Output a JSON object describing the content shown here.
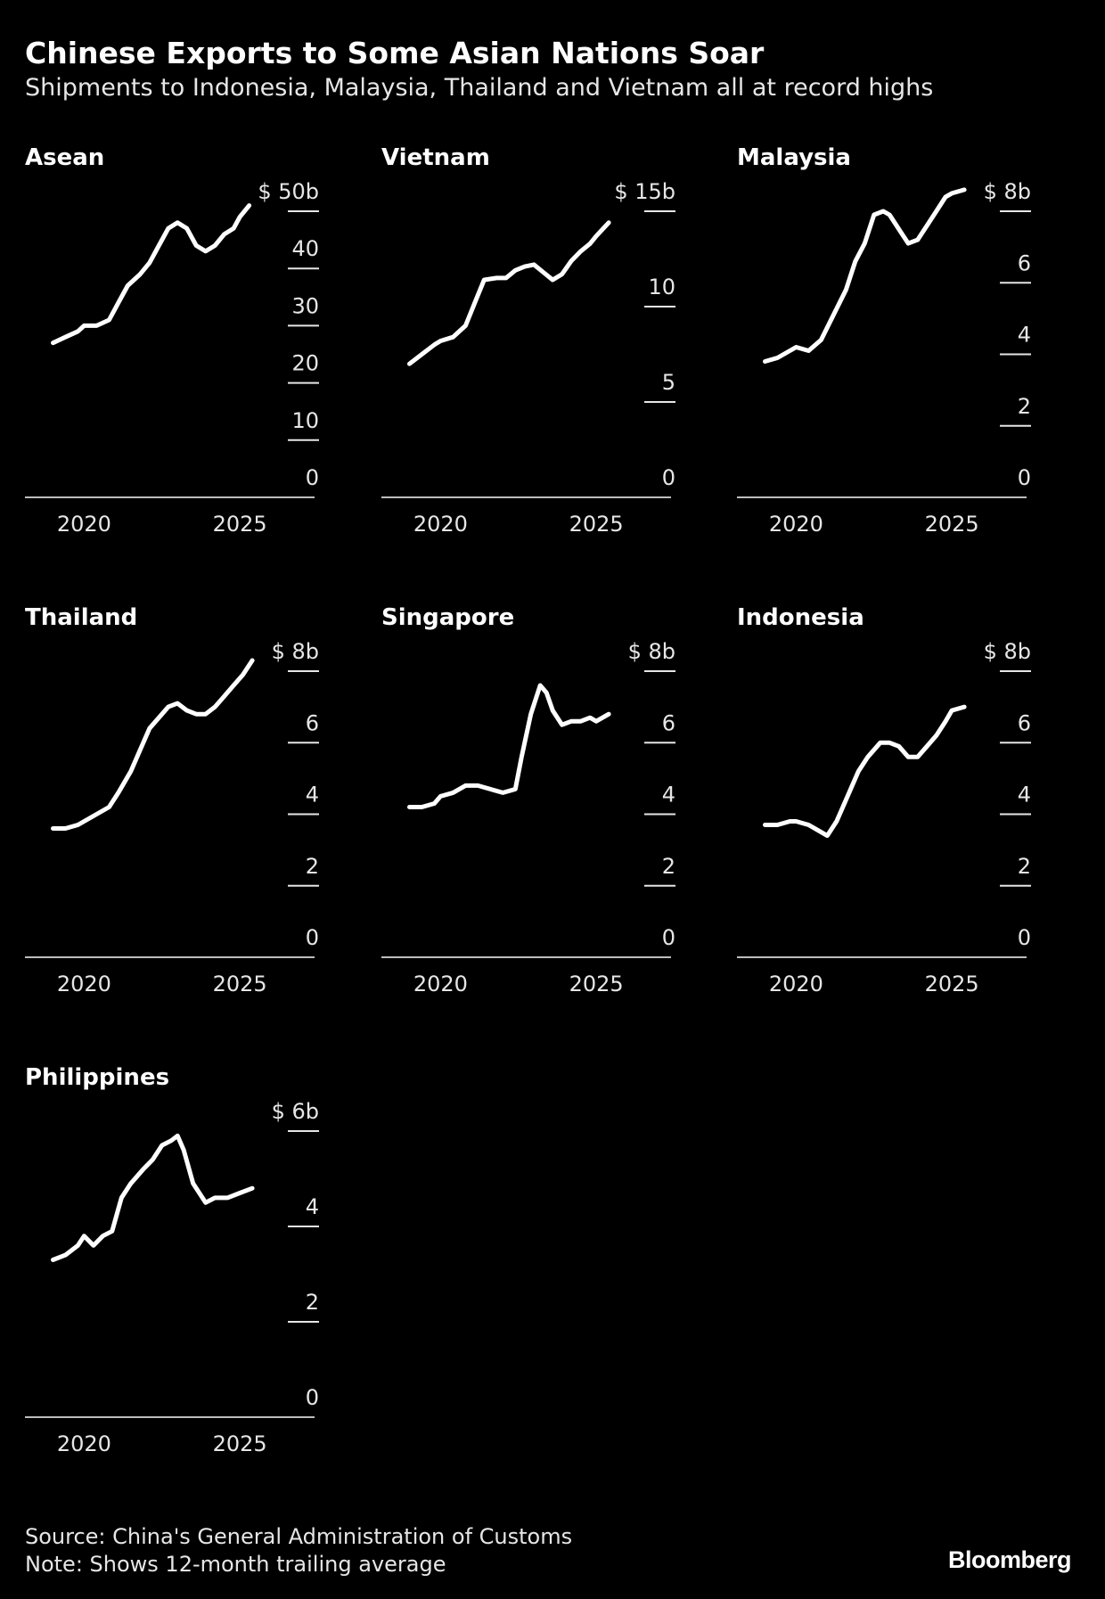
{
  "title": "Chinese Exports to Some Asian Nations Soar",
  "subtitle": "Shipments to Indonesia, Malaysia, Thailand and Vietnam all at record highs",
  "source": "Source: China's General Administration of Customs",
  "note": "Note: Shows 12-month trailing average",
  "brand": "Bloomberg",
  "colors": {
    "background": "#000000",
    "line": "#ffffff",
    "text": "#e6e6e6"
  },
  "chart_data": [
    {
      "type": "line",
      "title": "Asean",
      "unit_prefix": "$",
      "unit_suffix": "b",
      "ylim": [
        0,
        50
      ],
      "y_ticks": [
        {
          "value": 0,
          "label": "0"
        },
        {
          "value": 10,
          "label": "10"
        },
        {
          "value": 20,
          "label": "20"
        },
        {
          "value": 30,
          "label": "30"
        },
        {
          "value": 40,
          "label": "40"
        },
        {
          "value": 50,
          "label": "$ 50b"
        }
      ],
      "x_ticks": [
        {
          "value": 2020,
          "label": "2020"
        },
        {
          "value": 2025,
          "label": "2025"
        }
      ],
      "xlim": [
        2018.1,
        2027.4
      ],
      "x": [
        2019.0,
        2019.4,
        2019.8,
        2020.0,
        2020.4,
        2020.8,
        2021.1,
        2021.4,
        2021.8,
        2022.1,
        2022.4,
        2022.7,
        2023.0,
        2023.3,
        2023.6,
        2023.9,
        2024.2,
        2024.5,
        2024.8,
        2025.0,
        2025.3
      ],
      "values": [
        27,
        28,
        29,
        30,
        30,
        31,
        34,
        37,
        39,
        41,
        44,
        47,
        48,
        47,
        44,
        43,
        44,
        46,
        47,
        49,
        51
      ]
    },
    {
      "type": "line",
      "title": "Vietnam",
      "unit_prefix": "$",
      "unit_suffix": "b",
      "ylim": [
        0,
        15
      ],
      "y_ticks": [
        {
          "value": 0,
          "label": "0"
        },
        {
          "value": 5,
          "label": "5"
        },
        {
          "value": 10,
          "label": "10"
        },
        {
          "value": 15,
          "label": "$ 15b"
        }
      ],
      "x_ticks": [
        {
          "value": 2020,
          "label": "2020"
        },
        {
          "value": 2025,
          "label": "2025"
        }
      ],
      "xlim": [
        2018.1,
        2027.4
      ],
      "x": [
        2019.0,
        2019.4,
        2019.8,
        2020.0,
        2020.4,
        2020.8,
        2021.1,
        2021.4,
        2021.8,
        2022.1,
        2022.4,
        2022.7,
        2023.0,
        2023.3,
        2023.6,
        2023.9,
        2024.2,
        2024.5,
        2024.8,
        2025.0,
        2025.4
      ],
      "values": [
        7.0,
        7.5,
        8.0,
        8.2,
        8.4,
        9.0,
        10.2,
        11.4,
        11.5,
        11.5,
        11.9,
        12.1,
        12.2,
        11.8,
        11.4,
        11.7,
        12.4,
        12.9,
        13.3,
        13.7,
        14.4
      ]
    },
    {
      "type": "line",
      "title": "Malaysia",
      "unit_prefix": "$",
      "unit_suffix": "b",
      "ylim": [
        0,
        8
      ],
      "y_ticks": [
        {
          "value": 0,
          "label": "0"
        },
        {
          "value": 2,
          "label": "2"
        },
        {
          "value": 4,
          "label": "4"
        },
        {
          "value": 6,
          "label": "6"
        },
        {
          "value": 8,
          "label": "$ 8b"
        }
      ],
      "x_ticks": [
        {
          "value": 2020,
          "label": "2020"
        },
        {
          "value": 2025,
          "label": "2025"
        }
      ],
      "xlim": [
        2018.1,
        2027.4
      ],
      "x": [
        2019.0,
        2019.4,
        2019.8,
        2020.0,
        2020.4,
        2020.8,
        2021.2,
        2021.6,
        2021.9,
        2022.2,
        2022.5,
        2022.8,
        2023.0,
        2023.3,
        2023.6,
        2023.9,
        2024.2,
        2024.5,
        2024.8,
        2025.0,
        2025.4
      ],
      "values": [
        3.8,
        3.9,
        4.1,
        4.2,
        4.1,
        4.4,
        5.1,
        5.8,
        6.6,
        7.1,
        7.9,
        8.0,
        7.9,
        7.5,
        7.1,
        7.2,
        7.6,
        8.0,
        8.4,
        8.5,
        8.6
      ]
    },
    {
      "type": "line",
      "title": "Thailand",
      "unit_prefix": "$",
      "unit_suffix": "b",
      "ylim": [
        0,
        8
      ],
      "y_ticks": [
        {
          "value": 0,
          "label": "0"
        },
        {
          "value": 2,
          "label": "2"
        },
        {
          "value": 4,
          "label": "4"
        },
        {
          "value": 6,
          "label": "6"
        },
        {
          "value": 8,
          "label": "$ 8b"
        }
      ],
      "x_ticks": [
        {
          "value": 2020,
          "label": "2020"
        },
        {
          "value": 2025,
          "label": "2025"
        }
      ],
      "xlim": [
        2018.1,
        2027.4
      ],
      "x": [
        2019.0,
        2019.4,
        2019.8,
        2020.0,
        2020.4,
        2020.8,
        2021.1,
        2021.5,
        2021.8,
        2022.1,
        2022.4,
        2022.7,
        2023.0,
        2023.3,
        2023.6,
        2023.9,
        2024.2,
        2024.5,
        2024.8,
        2025.1,
        2025.4
      ],
      "values": [
        3.6,
        3.6,
        3.7,
        3.8,
        4.0,
        4.2,
        4.6,
        5.2,
        5.8,
        6.4,
        6.7,
        7.0,
        7.1,
        6.9,
        6.8,
        6.8,
        7.0,
        7.3,
        7.6,
        7.9,
        8.3
      ]
    },
    {
      "type": "line",
      "title": "Singapore",
      "unit_prefix": "$",
      "unit_suffix": "b",
      "ylim": [
        0,
        8
      ],
      "y_ticks": [
        {
          "value": 0,
          "label": "0"
        },
        {
          "value": 2,
          "label": "2"
        },
        {
          "value": 4,
          "label": "4"
        },
        {
          "value": 6,
          "label": "6"
        },
        {
          "value": 8,
          "label": "$ 8b"
        }
      ],
      "x_ticks": [
        {
          "value": 2020,
          "label": "2020"
        },
        {
          "value": 2025,
          "label": "2025"
        }
      ],
      "xlim": [
        2018.1,
        2027.4
      ],
      "x": [
        2019.0,
        2019.4,
        2019.8,
        2020.0,
        2020.4,
        2020.8,
        2021.2,
        2021.6,
        2022.0,
        2022.4,
        2022.6,
        2022.9,
        2023.2,
        2023.4,
        2023.6,
        2023.9,
        2024.2,
        2024.5,
        2024.8,
        2025.0,
        2025.4
      ],
      "values": [
        4.2,
        4.2,
        4.3,
        4.5,
        4.6,
        4.8,
        4.8,
        4.7,
        4.6,
        4.7,
        5.6,
        6.8,
        7.6,
        7.4,
        6.9,
        6.5,
        6.6,
        6.6,
        6.7,
        6.6,
        6.8
      ]
    },
    {
      "type": "line",
      "title": "Indonesia",
      "unit_prefix": "$",
      "unit_suffix": "b",
      "ylim": [
        0,
        8
      ],
      "y_ticks": [
        {
          "value": 0,
          "label": "0"
        },
        {
          "value": 2,
          "label": "2"
        },
        {
          "value": 4,
          "label": "4"
        },
        {
          "value": 6,
          "label": "6"
        },
        {
          "value": 8,
          "label": "$ 8b"
        }
      ],
      "x_ticks": [
        {
          "value": 2020,
          "label": "2020"
        },
        {
          "value": 2025,
          "label": "2025"
        }
      ],
      "xlim": [
        2018.1,
        2027.4
      ],
      "x": [
        2019.0,
        2019.4,
        2019.8,
        2020.0,
        2020.4,
        2020.8,
        2021.0,
        2021.3,
        2021.6,
        2022.0,
        2022.3,
        2022.7,
        2023.0,
        2023.3,
        2023.6,
        2023.9,
        2024.2,
        2024.5,
        2024.8,
        2025.0,
        2025.4
      ],
      "values": [
        3.7,
        3.7,
        3.8,
        3.8,
        3.7,
        3.5,
        3.4,
        3.8,
        4.4,
        5.2,
        5.6,
        6.0,
        6.0,
        5.9,
        5.6,
        5.6,
        5.9,
        6.2,
        6.6,
        6.9,
        7.0
      ]
    },
    {
      "type": "line",
      "title": "Philippines",
      "unit_prefix": "$",
      "unit_suffix": "b",
      "ylim": [
        0,
        6
      ],
      "y_ticks": [
        {
          "value": 0,
          "label": "0"
        },
        {
          "value": 2,
          "label": "2"
        },
        {
          "value": 4,
          "label": "4"
        },
        {
          "value": 6,
          "label": "$ 6b"
        }
      ],
      "x_ticks": [
        {
          "value": 2020,
          "label": "2020"
        },
        {
          "value": 2025,
          "label": "2025"
        }
      ],
      "xlim": [
        2018.1,
        2027.4
      ],
      "x": [
        2019.0,
        2019.4,
        2019.8,
        2020.0,
        2020.3,
        2020.6,
        2020.9,
        2021.2,
        2021.5,
        2021.9,
        2022.2,
        2022.5,
        2022.8,
        2023.0,
        2023.2,
        2023.5,
        2023.9,
        2024.2,
        2024.6,
        2025.0,
        2025.4
      ],
      "values": [
        3.3,
        3.4,
        3.6,
        3.8,
        3.6,
        3.8,
        3.9,
        4.6,
        4.9,
        5.2,
        5.4,
        5.7,
        5.8,
        5.9,
        5.6,
        4.9,
        4.5,
        4.6,
        4.6,
        4.7,
        4.8
      ]
    }
  ]
}
